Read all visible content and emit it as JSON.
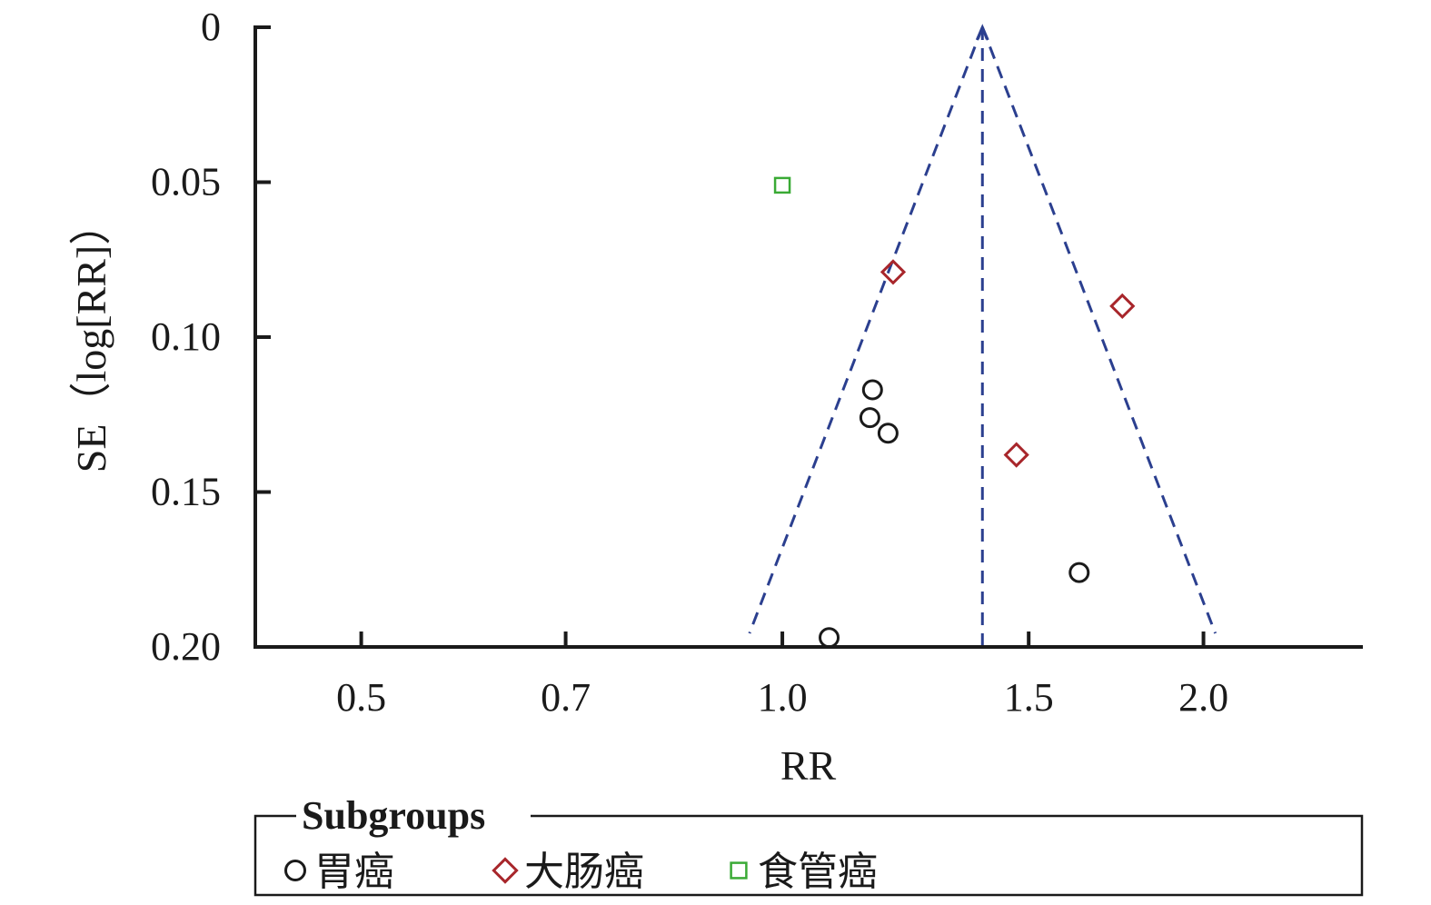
{
  "chart_data": {
    "type": "scatter",
    "title": "",
    "xlabel": "RR",
    "ylabel": "SE（log[RR]）",
    "x_scale": "log",
    "x_ticks": [
      0.5,
      0.7,
      1.0,
      1.5,
      2.0
    ],
    "x_tick_labels": [
      "0.5",
      "0.7",
      "1.0",
      "1.5",
      "2.0"
    ],
    "xlim": [
      0.42,
      2.6
    ],
    "y_inverted": true,
    "y_ticks": [
      0,
      0.05,
      0.1,
      0.15,
      0.2
    ],
    "y_tick_labels": [
      "0",
      "0.05",
      "0.10",
      "0.15",
      "0.20"
    ],
    "ylim": [
      0,
      0.2
    ],
    "grid": false,
    "funnel": {
      "pooled_rr": 1.39,
      "se_max": 0.2,
      "line_color": "#2b3f8f"
    },
    "legend": {
      "title": "Subgroups",
      "position": "bottom"
    },
    "series": [
      {
        "name": "胃癌",
        "marker": "circle",
        "color": "#1a1a1a",
        "points": [
          {
            "x": 1.16,
            "y": 0.117
          },
          {
            "x": 1.155,
            "y": 0.126
          },
          {
            "x": 1.19,
            "y": 0.131
          },
          {
            "x": 1.63,
            "y": 0.176
          },
          {
            "x": 1.08,
            "y": 0.197
          }
        ]
      },
      {
        "name": "大肠癌",
        "marker": "diamond",
        "color": "#a8262b",
        "points": [
          {
            "x": 1.2,
            "y": 0.079
          },
          {
            "x": 1.75,
            "y": 0.09
          },
          {
            "x": 1.47,
            "y": 0.138
          }
        ]
      },
      {
        "name": "食管癌",
        "marker": "square",
        "color": "#3aaa35",
        "points": [
          {
            "x": 1.0,
            "y": 0.051
          }
        ]
      }
    ]
  }
}
